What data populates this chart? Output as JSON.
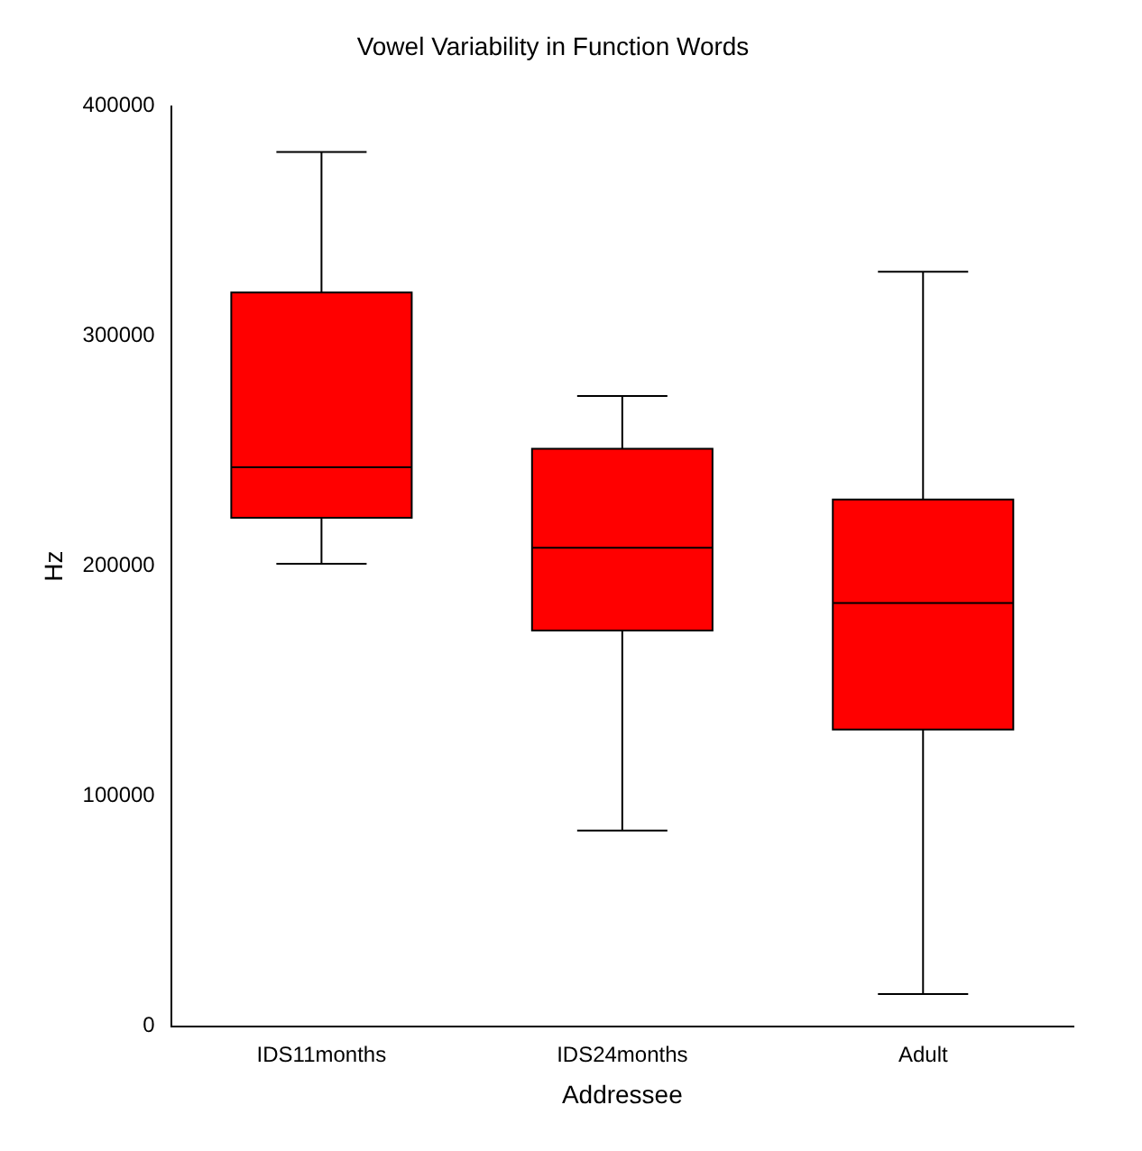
{
  "chart_data": {
    "type": "box",
    "title": "Vowel Variability in Function Words",
    "xlabel": "Addressee",
    "ylabel": "Hz",
    "categories": [
      "IDS11months",
      "IDS24months",
      "Adult"
    ],
    "color": "#ff0000",
    "boxes": [
      {
        "low": 201000,
        "q1": 221000,
        "median": 243000,
        "q3": 319000,
        "high": 380000
      },
      {
        "low": 85000,
        "q1": 172000,
        "median": 208000,
        "q3": 251000,
        "high": 274000
      },
      {
        "low": 14000,
        "q1": 129000,
        "median": 184000,
        "q3": 229000,
        "high": 328000
      }
    ],
    "ylim": [
      0,
      400000
    ],
    "yticks": [
      0,
      100000,
      200000,
      300000,
      400000
    ]
  }
}
